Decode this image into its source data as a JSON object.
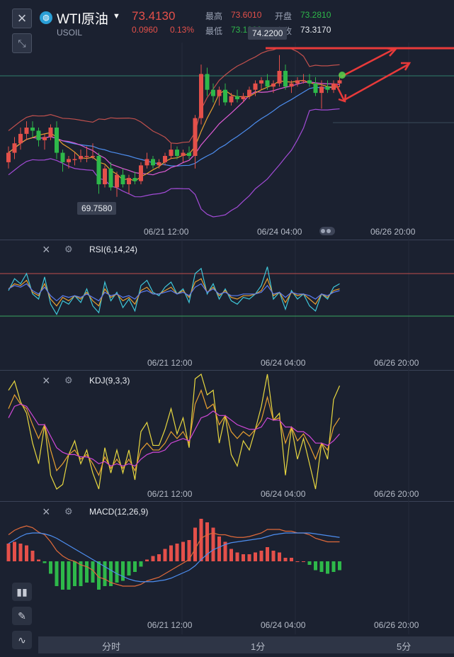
{
  "header": {
    "name": "WTI原油",
    "symbol": "USOIL",
    "price": "73.4130",
    "change": "0.0960",
    "change_pct": "0.13%",
    "high_label": "最高",
    "high_value": "73.6010",
    "open_label": "开盘",
    "open_value": "73.2810",
    "low_label": "最低",
    "low_value": "73.1900",
    "prev_label": "昨收",
    "prev_value": "73.3170"
  },
  "tags": {
    "max": "74.2200",
    "min": "69.7580"
  },
  "time_labels": [
    "06/21 12:00",
    "06/24 04:00",
    "06/26 20:00"
  ],
  "indicators": {
    "rsi": "RSI(6,14,24)",
    "kdj": "KDJ(9,3,3)",
    "macd": "MACD(12,26,9)"
  },
  "timeframes": [
    "分时",
    "1分",
    "5分"
  ],
  "colors": {
    "up": "#e4504a",
    "down": "#2eb84a",
    "bg": "#1b2130",
    "rsi_upper": "#c0504d",
    "rsi_lower": "#3aa861",
    "arrow": "#e83a3a"
  },
  "chart_data": {
    "type": "candlestick",
    "candles": [
      [
        70.8,
        71.3,
        70.6,
        71.1
      ],
      [
        71.1,
        71.6,
        70.9,
        71.4
      ],
      [
        71.4,
        71.9,
        71.2,
        71.7
      ],
      [
        71.7,
        72.1,
        71.5,
        71.9
      ],
      [
        71.9,
        72.1,
        71.6,
        71.8
      ],
      [
        71.8,
        71.9,
        71.3,
        71.5
      ],
      [
        71.5,
        71.7,
        71.2,
        71.6
      ],
      [
        71.6,
        72.0,
        71.5,
        71.9
      ],
      [
        71.9,
        72.1,
        70.9,
        71.1
      ],
      [
        71.1,
        71.2,
        70.5,
        70.8
      ],
      [
        70.8,
        71.0,
        70.6,
        70.9
      ],
      [
        70.9,
        71.1,
        70.7,
        70.9
      ],
      [
        70.9,
        71.2,
        70.8,
        71.0
      ],
      [
        71.0,
        71.3,
        70.8,
        71.0
      ],
      [
        71.0,
        71.4,
        70.9,
        71.0
      ],
      [
        71.0,
        71.1,
        69.8,
        70.1
      ],
      [
        70.1,
        70.7,
        70.0,
        70.6
      ],
      [
        70.6,
        70.8,
        69.9,
        70.0
      ],
      [
        70.0,
        70.5,
        69.7,
        70.4
      ],
      [
        70.4,
        70.6,
        70.0,
        70.1
      ],
      [
        70.1,
        70.4,
        69.8,
        70.3
      ],
      [
        70.3,
        70.5,
        70.1,
        70.2
      ],
      [
        70.2,
        70.8,
        70.1,
        70.7
      ],
      [
        70.7,
        71.1,
        70.6,
        70.9
      ],
      [
        70.9,
        71.0,
        70.6,
        70.7
      ],
      [
        70.7,
        70.9,
        70.6,
        70.8
      ],
      [
        70.8,
        71.1,
        70.7,
        71.0
      ],
      [
        71.0,
        71.4,
        70.9,
        71.2
      ],
      [
        71.2,
        71.3,
        70.9,
        71.0
      ],
      [
        71.0,
        71.2,
        70.8,
        71.1
      ],
      [
        71.1,
        71.3,
        70.9,
        71.0
      ],
      [
        71.0,
        72.3,
        70.6,
        72.2
      ],
      [
        72.2,
        73.9,
        72.0,
        73.6
      ],
      [
        73.6,
        73.8,
        72.9,
        73.1
      ],
      [
        73.1,
        73.3,
        72.7,
        72.9
      ],
      [
        72.9,
        73.2,
        72.6,
        73.1
      ],
      [
        73.1,
        73.3,
        72.6,
        72.7
      ],
      [
        72.7,
        73.0,
        72.6,
        72.9
      ],
      [
        72.9,
        73.1,
        72.7,
        72.8
      ],
      [
        72.8,
        73.0,
        72.7,
        72.9
      ],
      [
        72.9,
        73.2,
        72.8,
        73.1
      ],
      [
        73.1,
        73.4,
        72.9,
        73.3
      ],
      [
        73.3,
        73.5,
        73.1,
        73.4
      ],
      [
        73.4,
        73.6,
        73.1,
        73.2
      ],
      [
        73.2,
        73.4,
        73.0,
        73.3
      ],
      [
        73.3,
        74.2,
        73.2,
        73.7
      ],
      [
        73.7,
        73.9,
        73.1,
        73.2
      ],
      [
        73.2,
        73.4,
        73.0,
        73.3
      ],
      [
        73.3,
        73.5,
        73.2,
        73.4
      ],
      [
        73.4,
        73.6,
        73.3,
        73.4
      ],
      [
        73.4,
        73.6,
        73.2,
        73.3
      ],
      [
        73.3,
        73.5,
        72.9,
        73.0
      ],
      [
        73.0,
        73.4,
        72.5,
        73.2
      ],
      [
        73.2,
        73.4,
        73.0,
        73.1
      ],
      [
        73.1,
        73.4,
        73.0,
        73.3
      ],
      [
        73.3,
        73.6,
        73.2,
        73.4
      ]
    ],
    "rsi1": [
      50,
      64,
      58,
      70,
      46,
      40,
      66,
      34,
      22,
      38,
      34,
      44,
      36,
      52,
      32,
      24,
      60,
      38,
      48,
      30,
      40,
      26,
      56,
      62,
      48,
      44,
      54,
      60,
      46,
      52,
      36,
      70,
      76,
      46,
      58,
      40,
      52,
      38,
      34,
      42,
      40,
      46,
      56,
      78,
      40,
      48,
      28,
      50,
      40,
      46,
      32,
      26,
      46,
      40,
      54,
      58
    ],
    "rsi2": [
      52,
      58,
      56,
      62,
      48,
      44,
      58,
      40,
      32,
      42,
      38,
      44,
      40,
      48,
      38,
      32,
      52,
      42,
      46,
      38,
      42,
      34,
      50,
      54,
      46,
      46,
      50,
      54,
      46,
      50,
      42,
      60,
      64,
      48,
      54,
      44,
      50,
      42,
      40,
      44,
      44,
      46,
      50,
      64,
      44,
      48,
      36,
      48,
      44,
      46,
      40,
      34,
      46,
      42,
      50,
      52
    ],
    "rsi3": [
      52,
      56,
      54,
      58,
      50,
      46,
      54,
      44,
      38,
      44,
      42,
      44,
      42,
      46,
      42,
      38,
      48,
      44,
      46,
      42,
      44,
      40,
      48,
      50,
      46,
      46,
      48,
      50,
      46,
      48,
      44,
      54,
      58,
      48,
      52,
      46,
      48,
      44,
      44,
      46,
      46,
      46,
      48,
      56,
      46,
      48,
      42,
      48,
      46,
      46,
      44,
      40,
      46,
      44,
      48,
      50
    ],
    "k": [
      70,
      82,
      74,
      70,
      56,
      44,
      56,
      34,
      16,
      22,
      30,
      34,
      26,
      30,
      22,
      12,
      28,
      18,
      26,
      18,
      26,
      16,
      34,
      40,
      34,
      34,
      40,
      50,
      44,
      50,
      40,
      74,
      86,
      70,
      74,
      56,
      64,
      50,
      44,
      50,
      46,
      52,
      60,
      80,
      60,
      62,
      40,
      54,
      42,
      48,
      38,
      26,
      40,
      34,
      54,
      62
    ],
    "d": [
      62,
      72,
      74,
      72,
      64,
      56,
      56,
      46,
      36,
      32,
      30,
      30,
      28,
      28,
      26,
      22,
      24,
      20,
      22,
      20,
      22,
      20,
      26,
      30,
      32,
      32,
      34,
      40,
      42,
      44,
      42,
      52,
      62,
      64,
      68,
      64,
      64,
      60,
      56,
      54,
      52,
      52,
      54,
      62,
      60,
      60,
      54,
      54,
      50,
      50,
      46,
      40,
      40,
      38,
      42,
      48
    ],
    "j": [
      86,
      94,
      76,
      66,
      40,
      22,
      56,
      12,
      0,
      4,
      30,
      42,
      22,
      34,
      14,
      0,
      36,
      14,
      34,
      14,
      34,
      8,
      50,
      58,
      38,
      38,
      52,
      70,
      48,
      62,
      36,
      96,
      100,
      82,
      86,
      40,
      64,
      30,
      20,
      42,
      34,
      52,
      72,
      100,
      60,
      66,
      12,
      54,
      26,
      44,
      22,
      0,
      40,
      26,
      78,
      90
    ],
    "dif": [
      0.3,
      0.35,
      0.38,
      0.4,
      0.38,
      0.33,
      0.3,
      0.22,
      0.12,
      0.06,
      0.02,
      0.0,
      -0.04,
      -0.06,
      -0.1,
      -0.18,
      -0.2,
      -0.24,
      -0.26,
      -0.28,
      -0.28,
      -0.28,
      -0.26,
      -0.22,
      -0.2,
      -0.18,
      -0.14,
      -0.1,
      -0.06,
      -0.02,
      0.02,
      0.14,
      0.26,
      0.3,
      0.32,
      0.3,
      0.3,
      0.28,
      0.27,
      0.27,
      0.28,
      0.3,
      0.32,
      0.36,
      0.36,
      0.36,
      0.34,
      0.34,
      0.32,
      0.32,
      0.3,
      0.26,
      0.24,
      0.22,
      0.22,
      0.22
    ],
    "dea": [
      0.2,
      0.24,
      0.28,
      0.31,
      0.32,
      0.32,
      0.31,
      0.29,
      0.26,
      0.22,
      0.18,
      0.14,
      0.1,
      0.06,
      0.02,
      -0.02,
      -0.06,
      -0.1,
      -0.14,
      -0.17,
      -0.2,
      -0.22,
      -0.23,
      -0.23,
      -0.23,
      -0.22,
      -0.21,
      -0.19,
      -0.16,
      -0.13,
      -0.1,
      -0.05,
      0.02,
      0.08,
      0.13,
      0.16,
      0.19,
      0.21,
      0.22,
      0.23,
      0.24,
      0.25,
      0.26,
      0.28,
      0.3,
      0.31,
      0.32,
      0.32,
      0.32,
      0.32,
      0.32,
      0.31,
      0.3,
      0.29,
      0.28,
      0.27
    ],
    "macd": [
      0.2,
      0.22,
      0.2,
      0.18,
      0.12,
      0.02,
      -0.02,
      -0.14,
      -0.28,
      -0.32,
      -0.32,
      -0.28,
      -0.28,
      -0.24,
      -0.24,
      -0.32,
      -0.28,
      -0.28,
      -0.24,
      -0.22,
      -0.16,
      -0.12,
      -0.06,
      0.02,
      0.06,
      0.08,
      0.14,
      0.18,
      0.2,
      0.22,
      0.24,
      0.38,
      0.48,
      0.44,
      0.38,
      0.28,
      0.22,
      0.14,
      0.1,
      0.08,
      0.08,
      0.1,
      0.12,
      0.16,
      0.12,
      0.1,
      0.04,
      0.04,
      0.0,
      0.0,
      -0.04,
      -0.1,
      -0.12,
      -0.14,
      -0.12,
      -0.1
    ]
  }
}
